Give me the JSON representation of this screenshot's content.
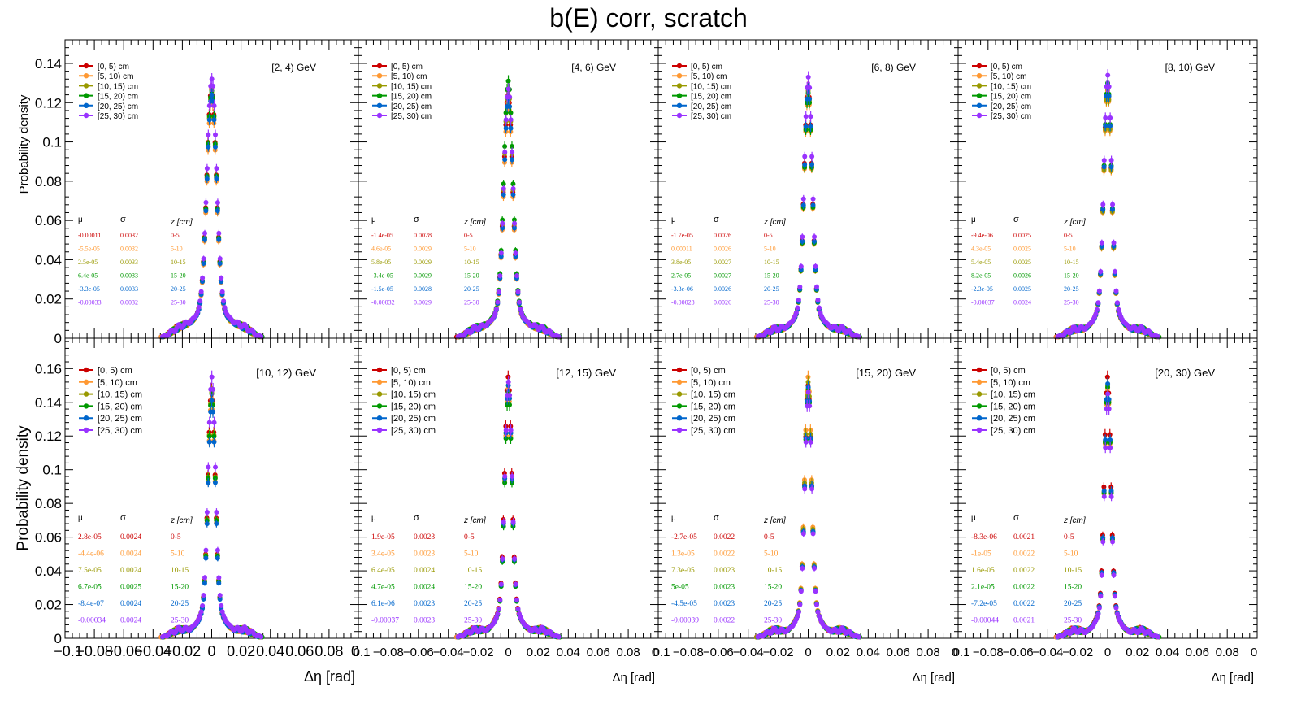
{
  "title": "b(E) corr, scratch",
  "colors": {
    "0-5": "#cc0000",
    "5-10": "#ff9933",
    "10-15": "#999900",
    "15-20": "#009900",
    "20-25": "#0066cc",
    "25-30": "#9933ff"
  },
  "chart_data": {
    "type": "scatter",
    "title": "b(E) corr, scratch",
    "xlabel": "Δη  [rad]",
    "ylabel": "Probability density",
    "xlim": [
      -0.1,
      0.1
    ],
    "legend": [
      "[0, 5) cm",
      "[5, 10) cm",
      "[10, 15) cm",
      "[15, 20) cm",
      "[20, 25) cm",
      "[25, 30) cm"
    ],
    "x_ticks": [
      "−0.1",
      "−0.08",
      "−0.06",
      "−0.04",
      "−0.02",
      "0",
      "0.02",
      "0.04",
      "0.06",
      "0.08",
      "0"
    ],
    "x_ticks_other": [
      "0.1",
      "−0.08",
      "−0.06",
      "−0.04",
      "−0.02",
      "0",
      "0.02",
      "0.04",
      "0.06",
      "0.08",
      "0"
    ],
    "y_ticks_top": [
      "0.02",
      "0.04",
      "0.06",
      "0.08",
      "0.1",
      "0.12",
      "0.14"
    ],
    "y_ticks_bottom": [
      "0",
      "0.02",
      "0.04",
      "0.06",
      "0.08",
      "0.1",
      "0.12",
      "0.14",
      "0.16"
    ],
    "y_top_zero_partial": "0",
    "table_header": {
      "mu": "μ",
      "sigma": "σ",
      "z": "z [cm]"
    },
    "z_labels": [
      "0-5",
      "5-10",
      "10-15",
      "15-20",
      "20-25",
      "25-30"
    ],
    "panels": [
      {
        "label": "[2, 4) GeV",
        "ylim": [
          0,
          0.152
        ],
        "sigma": 0.0032,
        "peaks": [
          0.127,
          0.122,
          0.125,
          0.126,
          0.124,
          0.132
        ],
        "mu": [
          "-0.00011",
          "-5.5e-05",
          "2.5e-05",
          "6.4e-05",
          "-3.3e-05",
          "-0.00033"
        ],
        "sig": [
          "0.0032",
          "0.0032",
          "0.0033",
          "0.0033",
          "0.0033",
          "0.0032"
        ]
      },
      {
        "label": "[4, 6) GeV",
        "ylim": [
          0,
          0.152
        ],
        "sigma": 0.0029,
        "peaks": [
          0.124,
          0.12,
          0.126,
          0.131,
          0.122,
          0.127
        ],
        "mu": [
          "-1.4e-05",
          "4.6e-05",
          "5.8e-05",
          "-3.4e-05",
          "-1.5e-05",
          "-0.00032"
        ],
        "sig": [
          "0.0028",
          "0.0029",
          "0.0029",
          "0.0029",
          "0.0028",
          "0.0029"
        ]
      },
      {
        "label": "[6, 8) GeV",
        "ylim": [
          0,
          0.152
        ],
        "sigma": 0.0026,
        "peaks": [
          0.128,
          0.124,
          0.126,
          0.125,
          0.127,
          0.133
        ],
        "mu": [
          "-1.7e-05",
          "0.00011",
          "3.8e-05",
          "2.7e-05",
          "-3.3e-06",
          "-0.00028"
        ],
        "sig": [
          "0.0026",
          "0.0026",
          "0.0027",
          "0.0027",
          "0.0026",
          "0.0026"
        ]
      },
      {
        "label": "[8, 10) GeV",
        "ylim": [
          0,
          0.152
        ],
        "sigma": 0.0025,
        "peaks": [
          0.128,
          0.126,
          0.127,
          0.13,
          0.129,
          0.134
        ],
        "mu": [
          "-9.4e-06",
          "4.3e-05",
          "5.4e-05",
          "8.2e-05",
          "-2.3e-05",
          "-0.00037"
        ],
        "sig": [
          "0.0025",
          "0.0025",
          "0.0025",
          "0.0026",
          "0.0025",
          "0.0024"
        ]
      },
      {
        "label": "[10, 12) GeV",
        "ylim": [
          0,
          0.178
        ],
        "sigma": 0.0024,
        "peaks": [
          0.148,
          0.142,
          0.146,
          0.145,
          0.141,
          0.155
        ],
        "mu": [
          "2.8e-05",
          "-4.4e-06",
          "7.5e-05",
          "6.7e-05",
          "-8.4e-07",
          "-0.00034"
        ],
        "sig": [
          "0.0024",
          "0.0024",
          "0.0024",
          "0.0025",
          "0.0024",
          "0.0024"
        ]
      },
      {
        "label": "[12, 15) GeV",
        "ylim": [
          0,
          0.178
        ],
        "sigma": 0.0023,
        "peaks": [
          0.155,
          0.148,
          0.15,
          0.146,
          0.15,
          0.152
        ],
        "mu": [
          "1.9e-05",
          "3.4e-05",
          "6.4e-05",
          "4.7e-05",
          "6.1e-06",
          "-0.00037"
        ],
        "sig": [
          "0.0023",
          "0.0023",
          "0.0024",
          "0.0024",
          "0.0023",
          "0.0023"
        ]
      },
      {
        "label": "[15, 20) GeV",
        "ylim": [
          0,
          0.178
        ],
        "sigma": 0.0022,
        "peaks": [
          0.15,
          0.155,
          0.152,
          0.148,
          0.149,
          0.146
        ],
        "mu": [
          "-2.7e-05",
          "1.3e-05",
          "7.3e-05",
          "5e-05",
          "-4.5e-05",
          "-0.00039"
        ],
        "sig": [
          "0.0022",
          "0.0022",
          "0.0023",
          "0.0023",
          "0.0023",
          "0.0022"
        ]
      },
      {
        "label": "[20, 30) GeV",
        "ylim": [
          0,
          0.178
        ],
        "sigma": 0.0021,
        "peaks": [
          0.155,
          0.148,
          0.15,
          0.149,
          0.151,
          0.145
        ],
        "mu": [
          "-8.3e-06",
          "-1e-05",
          "1.6e-05",
          "2.1e-05",
          "-7.2e-05",
          "-0.00044"
        ],
        "sig": [
          "0.0021",
          "0.0022",
          "0.0022",
          "0.0022",
          "0.0022",
          "0.0021"
        ]
      }
    ]
  }
}
